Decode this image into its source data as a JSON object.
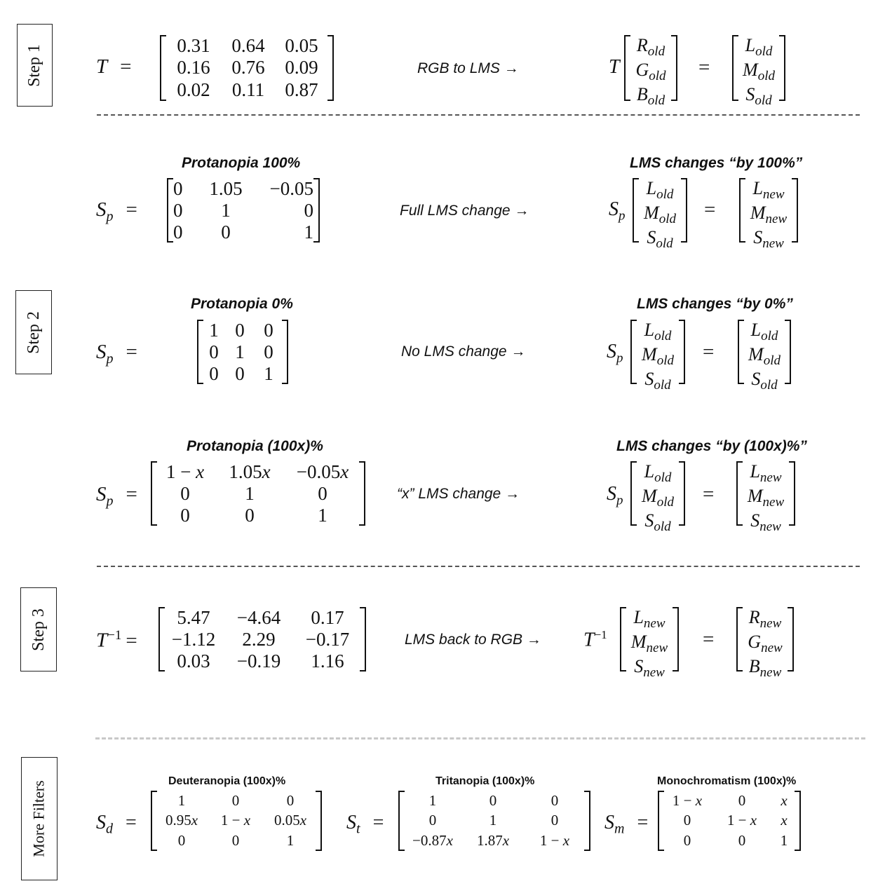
{
  "steps": {
    "step1": "Step 1",
    "step2": "Step 2",
    "step3": "Step 3",
    "more": "More Filters"
  },
  "row1": {
    "lhs": "T",
    "matrix": [
      [
        "0.31",
        "0.64",
        "0.05"
      ],
      [
        "0.16",
        "0.76",
        "0.09"
      ],
      [
        "0.02",
        "0.11",
        "0.87"
      ]
    ],
    "desc": "RGB to LMS",
    "arrow": "→",
    "pre": "T",
    "in_vec": [
      [
        "R",
        "old"
      ],
      [
        "G",
        "old"
      ],
      [
        "B",
        "old"
      ]
    ],
    "out_vec": [
      [
        "L",
        "old"
      ],
      [
        "M",
        "old"
      ],
      [
        "S",
        "old"
      ]
    ]
  },
  "row2": {
    "label": "Protanopia 100%",
    "lhs": "S",
    "lhs_sub": "p",
    "matrix": [
      [
        "0",
        "1.05",
        "−0.05"
      ],
      [
        "0",
        "1",
        "0"
      ],
      [
        "0",
        "0",
        "1"
      ]
    ],
    "desc": "Full LMS change",
    "arrow": "→",
    "right_label": "LMS changes “by 100%”",
    "pre": "S",
    "pre_sub": "p",
    "in_vec": [
      [
        "L",
        "old"
      ],
      [
        "M",
        "old"
      ],
      [
        "S",
        "old"
      ]
    ],
    "out_vec": [
      [
        "L",
        "new"
      ],
      [
        "M",
        "new"
      ],
      [
        "S",
        "new"
      ]
    ]
  },
  "row3": {
    "label": "Protanopia 0%",
    "lhs": "S",
    "lhs_sub": "p",
    "matrix": [
      [
        "1",
        "0",
        "0"
      ],
      [
        "0",
        "1",
        "0"
      ],
      [
        "0",
        "0",
        "1"
      ]
    ],
    "desc": "No LMS change",
    "arrow": "→",
    "right_label": "LMS changes “by 0%”",
    "pre": "S",
    "pre_sub": "p",
    "in_vec": [
      [
        "L",
        "old"
      ],
      [
        "M",
        "old"
      ],
      [
        "S",
        "old"
      ]
    ],
    "out_vec": [
      [
        "L",
        "old"
      ],
      [
        "M",
        "old"
      ],
      [
        "S",
        "old"
      ]
    ]
  },
  "row4": {
    "label": "Protanopia (100x)%",
    "lhs": "S",
    "lhs_sub": "p",
    "matrix": [
      [
        "1 − x",
        "1.05x",
        "−0.05x"
      ],
      [
        "0",
        "1",
        "0"
      ],
      [
        "0",
        "0",
        "1"
      ]
    ],
    "desc": "“x” LMS change",
    "arrow": "→",
    "right_label": "LMS changes “by (100x)%”",
    "pre": "S",
    "pre_sub": "p",
    "in_vec": [
      [
        "L",
        "old"
      ],
      [
        "M",
        "old"
      ],
      [
        "S",
        "old"
      ]
    ],
    "out_vec": [
      [
        "L",
        "new"
      ],
      [
        "M",
        "new"
      ],
      [
        "S",
        "new"
      ]
    ]
  },
  "row5": {
    "lhs": "T",
    "lhs_sup": "−1",
    "matrix": [
      [
        "5.47",
        "−4.64",
        "0.17"
      ],
      [
        "−1.12",
        "2.29",
        "−0.17"
      ],
      [
        "0.03",
        "−0.19",
        "1.16"
      ]
    ],
    "desc": "LMS back to RGB",
    "arrow": "→",
    "pre": "T",
    "pre_sup": "−1",
    "in_vec": [
      [
        "L",
        "new"
      ],
      [
        "M",
        "new"
      ],
      [
        "S",
        "new"
      ]
    ],
    "out_vec": [
      [
        "R",
        "new"
      ],
      [
        "G",
        "new"
      ],
      [
        "B",
        "new"
      ]
    ]
  },
  "filters": {
    "deut": {
      "label": "Deuteranopia (100x)%",
      "lhs": "S",
      "lhs_sub": "d",
      "matrix": [
        [
          "1",
          "0",
          "0"
        ],
        [
          "0.95x",
          "1 − x",
          "0.05x"
        ],
        [
          "0",
          "0",
          "1"
        ]
      ]
    },
    "trit": {
      "label": "Tritanopia (100x)%",
      "lhs": "S",
      "lhs_sub": "t",
      "matrix": [
        [
          "1",
          "0",
          "0"
        ],
        [
          "0",
          "1",
          "0"
        ],
        [
          "−0.87x",
          "1.87x",
          "1 − x"
        ]
      ]
    },
    "mono": {
      "label": "Monochromatism (100x)%",
      "lhs": "S",
      "lhs_sub": "m",
      "matrix": [
        [
          "1 − x",
          "0",
          "x"
        ],
        [
          "0",
          "1 − x",
          "x"
        ],
        [
          "0",
          "0",
          "1"
        ]
      ]
    }
  },
  "eq_sign": "="
}
